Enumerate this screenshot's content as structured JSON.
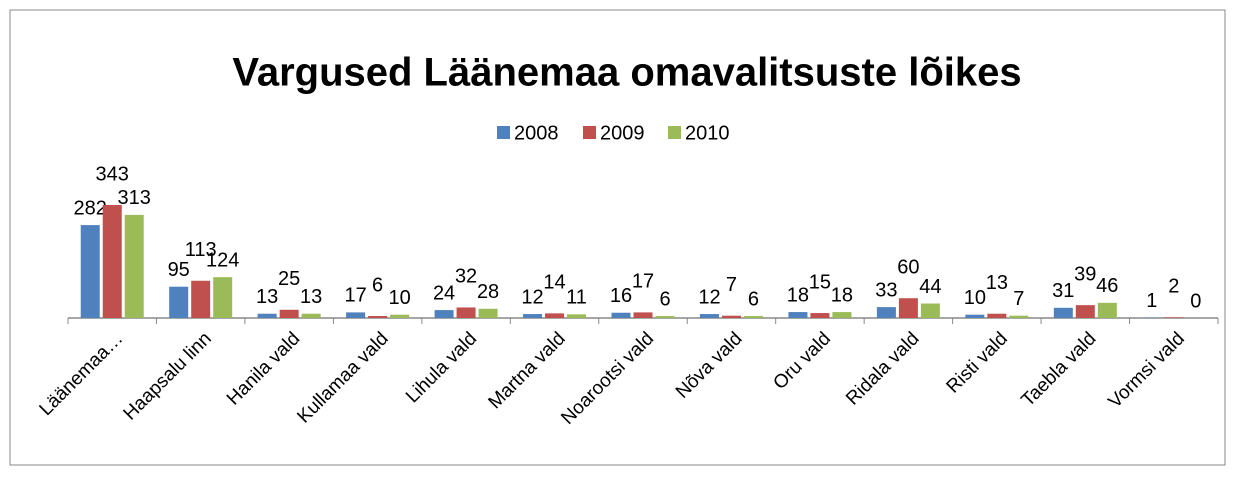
{
  "chart_data": {
    "type": "bar",
    "title": "Vargused Läänemaa omavalitsuste lõikes",
    "categories": [
      "Läänemaa…",
      "Haapsalu linn",
      "Hanila vald",
      "Kullamaa vald",
      "Lihula vald",
      "Martna vald",
      "Noarootsi vald",
      "Nõva vald",
      "Oru vald",
      "Ridala vald",
      "Risti vald",
      "Taebla vald",
      "Vormsi vald"
    ],
    "series": [
      {
        "name": "2008",
        "color": "#4f81bd",
        "values": [
          282,
          95,
          13,
          17,
          24,
          12,
          16,
          12,
          18,
          33,
          10,
          31,
          1
        ]
      },
      {
        "name": "2009",
        "color": "#c0504d",
        "values": [
          343,
          113,
          25,
          6,
          32,
          14,
          17,
          7,
          15,
          60,
          13,
          39,
          2
        ]
      },
      {
        "name": "2010",
        "color": "#9bbb59",
        "values": [
          313,
          124,
          13,
          10,
          28,
          11,
          6,
          6,
          18,
          44,
          7,
          46,
          0
        ]
      }
    ],
    "legend": "top"
  }
}
